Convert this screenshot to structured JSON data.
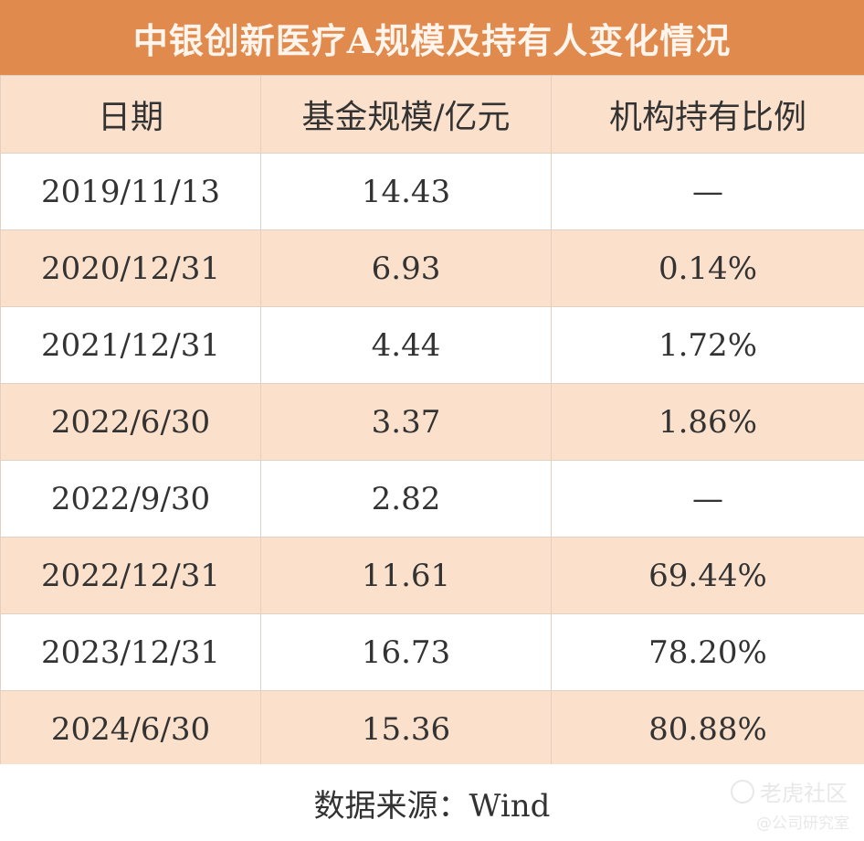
{
  "title": "中银创新医疗A规模及持有人变化情况",
  "table": {
    "headers": [
      "日期",
      "基金规模/亿元",
      "机构持有比例"
    ],
    "rows": [
      [
        "2019/11/13",
        "14.43",
        "—"
      ],
      [
        "2020/12/31",
        "6.93",
        "0.14%"
      ],
      [
        "2021/12/31",
        "4.44",
        "1.72%"
      ],
      [
        "2022/6/30",
        "3.37",
        "1.86%"
      ],
      [
        "2022/9/30",
        "2.82",
        "—"
      ],
      [
        "2022/12/31",
        "11.61",
        "69.44%"
      ],
      [
        "2023/12/31",
        "16.73",
        "78.20%"
      ],
      [
        "2024/6/30",
        "15.36",
        "80.88%"
      ]
    ]
  },
  "footer": "数据来源：Wind",
  "watermark": {
    "main": "老虎社区",
    "sub": "@公司研究室",
    "icon": "tiger-community-logo-icon"
  },
  "colors": {
    "title_bg": "#e08a4e",
    "band_bg": "#fbe1cc"
  }
}
